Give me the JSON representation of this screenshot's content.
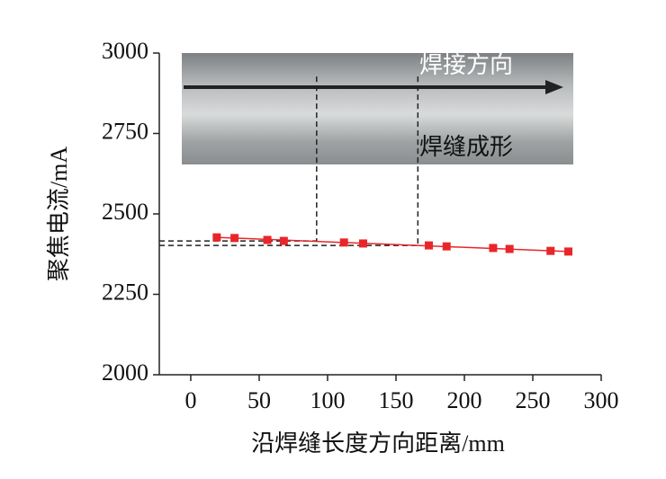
{
  "chart_data": {
    "type": "scatter",
    "xlabel": "沿焊缝长度方向距离/mm",
    "ylabel": "聚焦电流/mA",
    "xlim": [
      -23,
      300
    ],
    "ylim": [
      2000,
      3000
    ],
    "xticks": [
      0,
      50,
      100,
      150,
      200,
      250,
      300
    ],
    "yticks": [
      2000,
      2250,
      2500,
      2750,
      3000
    ],
    "series": [
      {
        "color": "#e8262a",
        "x": [
          19,
          32,
          56,
          68,
          112,
          126,
          174,
          187,
          221,
          233,
          263,
          276
        ],
        "values": [
          2427,
          2425,
          2419,
          2416,
          2411,
          2408,
          2402,
          2399,
          2394,
          2391,
          2385,
          2383
        ]
      }
    ],
    "fit_line": {
      "color": "#e8262a",
      "x": [
        19,
        276
      ],
      "values": [
        2427,
        2383
      ]
    },
    "reference_lines": [
      {
        "x": 92,
        "y": 2416,
        "top": 2927
      },
      {
        "x": 166,
        "y": 2402,
        "top": 2927
      }
    ],
    "inset": {
      "labels": [
        "焊接方向",
        "焊缝成形"
      ]
    }
  }
}
